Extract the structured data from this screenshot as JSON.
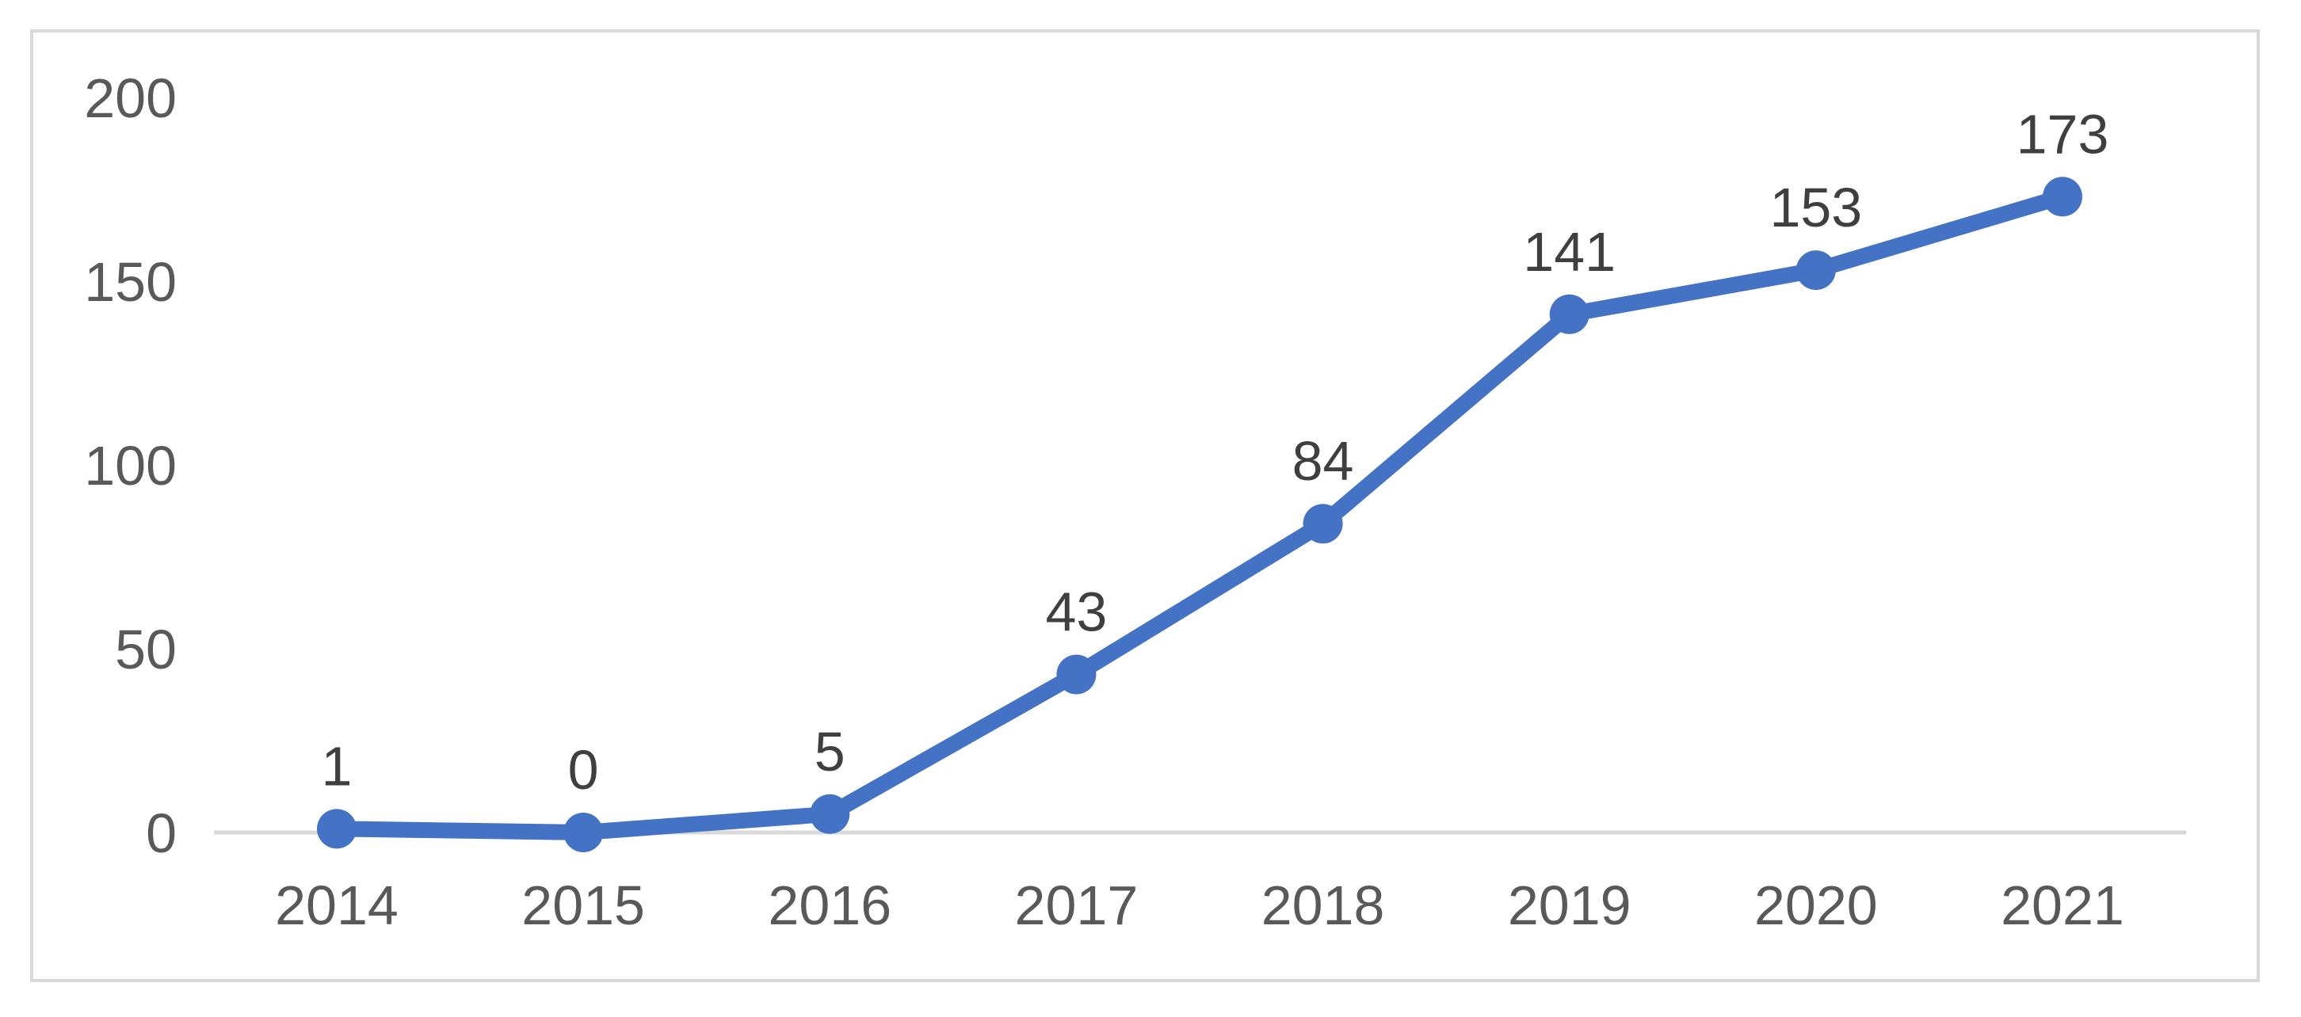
{
  "chart_data": {
    "type": "line",
    "categories": [
      "2014",
      "2015",
      "2016",
      "2017",
      "2018",
      "2019",
      "2020",
      "2021"
    ],
    "values": [
      1,
      0,
      5,
      43,
      84,
      141,
      153,
      173
    ],
    "yticks": [
      0,
      50,
      100,
      150,
      200
    ],
    "ylim": [
      0,
      200
    ],
    "grid": false,
    "legend": "none",
    "marker": "circle",
    "colors": {
      "line": "#4472C4",
      "marker": "#4472C4",
      "data_label": "#3f3f3f",
      "axis_label": "#595959",
      "axis_line": "#d9d9d9",
      "border": "#d9d9d9",
      "background": "#ffffff"
    }
  }
}
